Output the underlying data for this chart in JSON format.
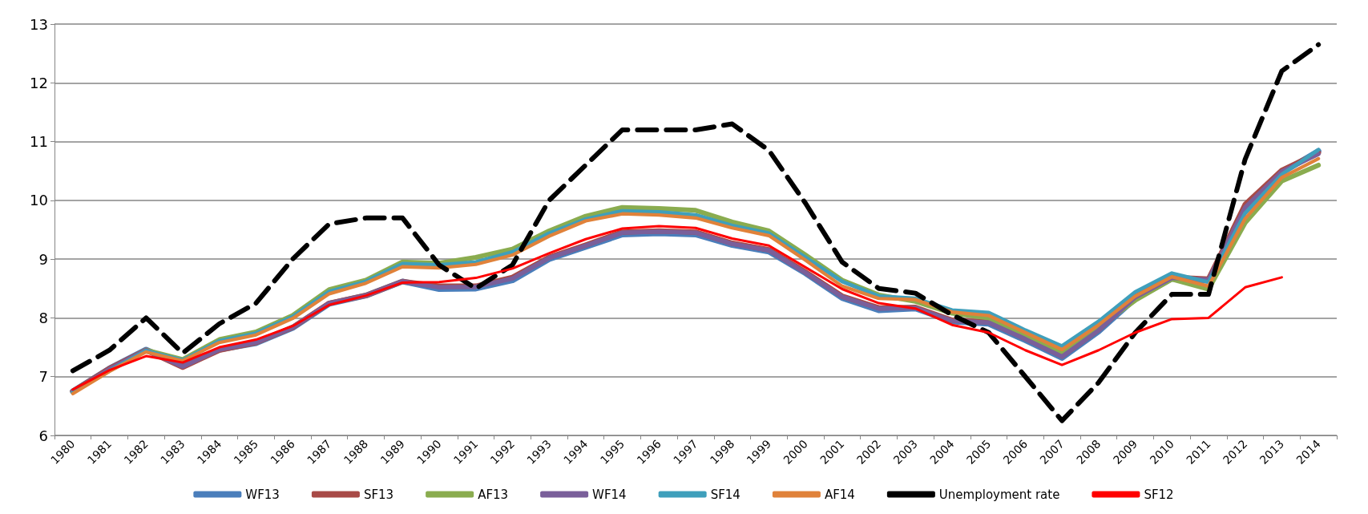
{
  "chart_data": {
    "type": "line",
    "categories": [
      "1980",
      "1981",
      "1982",
      "1983",
      "1984",
      "1985",
      "1986",
      "1987",
      "1988",
      "1989",
      "1990",
      "1991",
      "1992",
      "1993",
      "1994",
      "1995",
      "1996",
      "1997",
      "1998",
      "1999",
      "2000",
      "2001",
      "2002",
      "2003",
      "2004",
      "2005",
      "2006",
      "2007",
      "2008",
      "2009",
      "2010",
      "2011",
      "2012",
      "2013",
      "2014"
    ],
    "ylim": [
      6,
      13
    ],
    "yticks": [
      6,
      7,
      8,
      9,
      10,
      11,
      12,
      13
    ],
    "grid": "y",
    "legend": "bottom",
    "marker": "none",
    "series": [
      {
        "name": "WF13",
        "color": "#4a7ebb",
        "values": [
          6.75,
          7.14,
          7.46,
          7.18,
          7.46,
          7.57,
          7.83,
          8.24,
          8.38,
          8.62,
          8.49,
          8.5,
          8.64,
          9.0,
          9.21,
          9.42,
          9.44,
          9.42,
          9.24,
          9.13,
          8.76,
          8.34,
          8.13,
          8.16,
          7.94,
          7.9,
          7.62,
          7.32,
          7.77,
          8.33,
          8.67,
          8.63,
          9.85,
          10.47,
          10.84
        ]
      },
      {
        "name": "SF13",
        "color": "#a84a47",
        "values": [
          6.75,
          7.14,
          7.45,
          7.16,
          7.45,
          7.58,
          7.84,
          8.25,
          8.38,
          8.62,
          8.54,
          8.54,
          8.69,
          9.03,
          9.24,
          9.46,
          9.48,
          9.46,
          9.27,
          9.16,
          8.78,
          8.37,
          8.17,
          8.18,
          7.96,
          7.93,
          7.65,
          7.35,
          7.8,
          8.36,
          8.69,
          8.66,
          9.93,
          10.51,
          10.81
        ]
      },
      {
        "name": "AF13",
        "color": "#8aac4f",
        "values": [
          6.74,
          7.11,
          7.45,
          7.29,
          7.63,
          7.76,
          8.04,
          8.48,
          8.64,
          8.95,
          8.93,
          9.03,
          9.17,
          9.48,
          9.73,
          9.88,
          9.86,
          9.83,
          9.63,
          9.48,
          9.07,
          8.64,
          8.39,
          8.28,
          8.08,
          8.0,
          7.72,
          7.42,
          7.85,
          8.3,
          8.66,
          8.49,
          9.62,
          10.33,
          10.6
        ]
      },
      {
        "name": "WF14",
        "color": "#7a5f9a",
        "values": [
          6.75,
          7.13,
          7.45,
          7.17,
          7.46,
          7.58,
          7.84,
          8.25,
          8.38,
          8.62,
          8.52,
          8.53,
          8.67,
          9.02,
          9.23,
          9.45,
          9.47,
          9.45,
          9.26,
          9.15,
          8.77,
          8.36,
          8.16,
          8.17,
          7.95,
          7.92,
          7.64,
          7.34,
          7.79,
          8.35,
          8.68,
          8.65,
          9.88,
          10.49,
          10.79
        ]
      },
      {
        "name": "SF14",
        "color": "#3f9fbb",
        "values": [
          6.73,
          7.1,
          7.44,
          7.28,
          7.61,
          7.74,
          8.02,
          8.45,
          8.62,
          8.92,
          8.9,
          8.95,
          9.12,
          9.44,
          9.68,
          9.82,
          9.8,
          9.75,
          9.57,
          9.44,
          9.03,
          8.62,
          8.37,
          8.33,
          8.13,
          8.09,
          7.79,
          7.52,
          7.94,
          8.44,
          8.76,
          8.61,
          9.78,
          10.44,
          10.86
        ]
      },
      {
        "name": "AF14",
        "color": "#e0823a",
        "values": [
          6.71,
          7.09,
          7.42,
          7.27,
          7.58,
          7.71,
          7.99,
          8.41,
          8.59,
          8.87,
          8.85,
          8.91,
          9.07,
          9.39,
          9.65,
          9.77,
          9.75,
          9.7,
          9.53,
          9.4,
          8.98,
          8.54,
          8.33,
          8.31,
          8.1,
          8.04,
          7.75,
          7.46,
          7.88,
          8.37,
          8.7,
          8.54,
          9.69,
          10.39,
          10.71
        ]
      },
      {
        "name": "Unemployment rate",
        "color": "#000000",
        "line_style": "dashed",
        "values": [
          7.1,
          7.45,
          8.0,
          7.4,
          7.9,
          8.25,
          9.0,
          9.6,
          9.7,
          9.7,
          8.9,
          8.5,
          8.9,
          10.0,
          10.6,
          11.2,
          11.2,
          11.2,
          11.3,
          10.85,
          9.95,
          8.95,
          8.5,
          8.42,
          8.05,
          7.75,
          7.0,
          6.25,
          6.9,
          7.75,
          8.4,
          8.4,
          10.7,
          12.2,
          12.65
        ]
      },
      {
        "name": "SF12",
        "color": "#ff0000",
        "values": [
          6.78,
          7.11,
          7.35,
          7.24,
          7.5,
          7.63,
          7.86,
          8.22,
          8.38,
          8.6,
          8.61,
          8.68,
          8.84,
          9.1,
          9.34,
          9.52,
          9.56,
          9.53,
          9.35,
          9.23,
          8.86,
          8.49,
          8.25,
          8.16,
          7.88,
          7.75,
          7.45,
          7.2,
          7.45,
          7.75,
          7.98,
          8.0,
          8.52,
          8.69,
          null
        ]
      }
    ]
  }
}
